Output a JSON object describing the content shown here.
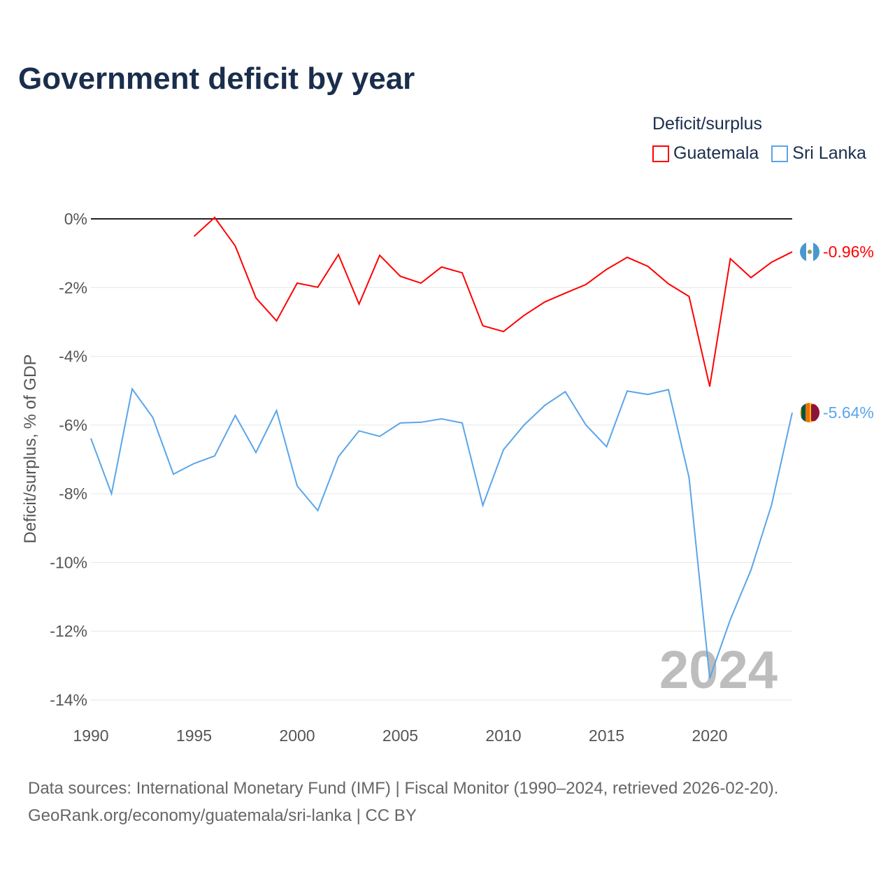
{
  "title": "Government deficit by year",
  "legend": {
    "title": "Deficit/surplus",
    "items": [
      {
        "label": "Guatemala",
        "color": "#ff0000"
      },
      {
        "label": "Sri Lanka",
        "color": "#5aa5ea"
      }
    ]
  },
  "watermark_year": "2024",
  "footer": {
    "line1": "Data sources: International Monetary Fund (IMF) | Fiscal Monitor (1990–2024, retrieved 2026-02-20).",
    "line2": "GeoRank.org/economy/guatemala/sri-lanka | CC BY"
  },
  "chart_data": {
    "type": "line",
    "title": "Government deficit by year",
    "xlabel": "",
    "ylabel": "Deficit/surplus, % of GDP",
    "xlim": [
      1990,
      2024
    ],
    "ylim": [
      -14,
      0
    ],
    "x_ticks": [
      "1990",
      "1995",
      "2000",
      "2005",
      "2010",
      "2015",
      "2020"
    ],
    "y_ticks": [
      "0%",
      "-2%",
      "-4%",
      "-6%",
      "-8%",
      "-10%",
      "-12%",
      "-14%"
    ],
    "grid": true,
    "legend_position": "top-right",
    "series": [
      {
        "name": "Guatemala",
        "color": "#ff0000",
        "end_label": "-0.96%",
        "flag": "guatemala-flag",
        "x": [
          1995,
          1996,
          1997,
          1998,
          1999,
          2000,
          2001,
          2002,
          2003,
          2004,
          2005,
          2006,
          2007,
          2008,
          2009,
          2010,
          2011,
          2012,
          2013,
          2014,
          2015,
          2016,
          2017,
          2018,
          2019,
          2020,
          2021,
          2022,
          2023,
          2024
        ],
        "values": [
          -0.51,
          0.04,
          -0.79,
          -2.3,
          -2.97,
          -1.87,
          -1.99,
          -1.04,
          -2.48,
          -1.06,
          -1.67,
          -1.87,
          -1.4,
          -1.57,
          -3.11,
          -3.28,
          -2.81,
          -2.42,
          -2.16,
          -1.91,
          -1.47,
          -1.12,
          -1.38,
          -1.89,
          -2.26,
          -4.88,
          -1.16,
          -1.71,
          -1.26,
          -0.96
        ]
      },
      {
        "name": "Sri Lanka",
        "color": "#5aa5ea",
        "end_label": "-5.64%",
        "flag": "sri-lanka-flag",
        "x": [
          1990,
          1991,
          1992,
          1993,
          1994,
          1995,
          1996,
          1997,
          1998,
          1999,
          2000,
          2001,
          2002,
          2003,
          2004,
          2005,
          2006,
          2007,
          2008,
          2009,
          2010,
          2011,
          2012,
          2013,
          2014,
          2015,
          2016,
          2017,
          2018,
          2019,
          2020,
          2021,
          2022,
          2023,
          2024
        ],
        "values": [
          -6.39,
          -8.0,
          -4.95,
          -5.78,
          -7.43,
          -7.12,
          -6.9,
          -5.72,
          -6.8,
          -5.58,
          -7.77,
          -8.49,
          -6.92,
          -6.17,
          -6.33,
          -5.94,
          -5.92,
          -5.82,
          -5.94,
          -8.34,
          -6.72,
          -6.0,
          -5.43,
          -5.03,
          -6.0,
          -6.63,
          -5.01,
          -5.11,
          -4.97,
          -7.53,
          -13.37,
          -11.66,
          -10.22,
          -8.32,
          -5.64
        ]
      }
    ]
  }
}
